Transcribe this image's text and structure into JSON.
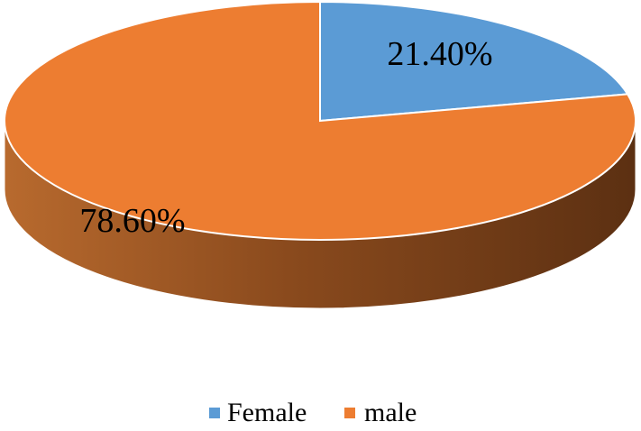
{
  "chart_data": {
    "type": "pie",
    "style": "3d",
    "categories": [
      "Female",
      "male"
    ],
    "values": [
      21.4,
      78.6
    ],
    "labels": [
      "21.40%",
      "78.60%"
    ],
    "colors": [
      "#5B9BD5",
      "#ED7D31"
    ],
    "legend": {
      "position": "bottom",
      "entries": [
        "Female",
        "male"
      ]
    }
  }
}
